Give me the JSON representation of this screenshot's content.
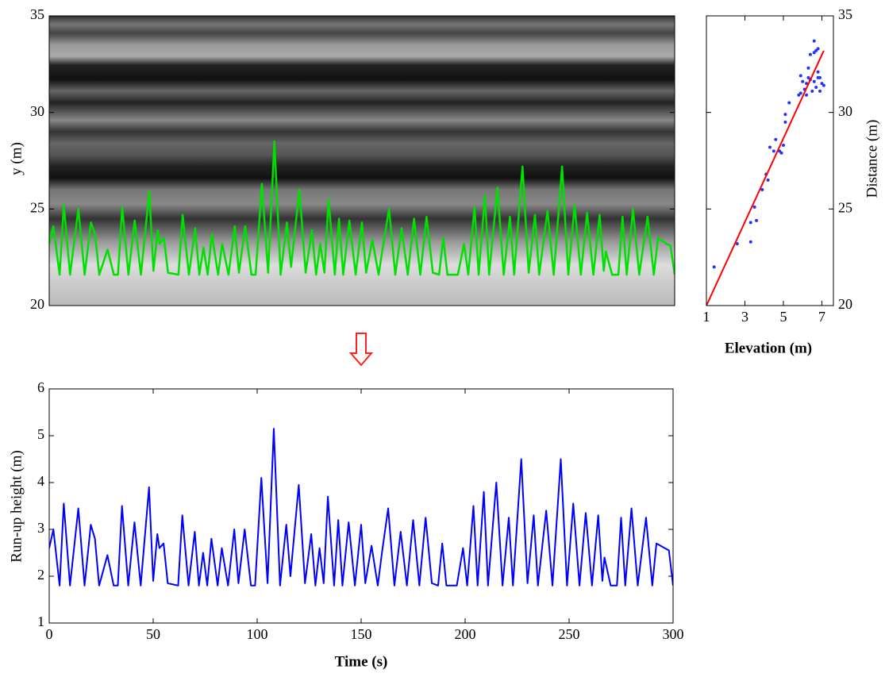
{
  "chart_data": [
    {
      "type": "line",
      "ylabel": "y (m)",
      "xlim": [
        0,
        300
      ],
      "ylim": [
        20,
        35
      ],
      "yticks": [
        20,
        25,
        30,
        35
      ],
      "series": [
        {
          "color": "#00e000",
          "x": [
            0,
            2,
            5,
            7,
            10,
            14,
            17,
            20,
            22,
            24,
            28,
            31,
            33,
            35,
            38,
            41,
            44,
            48,
            50,
            52,
            53,
            55,
            57,
            62,
            64,
            67,
            70,
            72,
            74,
            76,
            78,
            81,
            83,
            86,
            89,
            91,
            94,
            97,
            99,
            102,
            105,
            108,
            111,
            114,
            116,
            120,
            123,
            126,
            128,
            130,
            132,
            134,
            137,
            139,
            141,
            144,
            147,
            150,
            152,
            155,
            158,
            160,
            163,
            166,
            169,
            172,
            175,
            178,
            181,
            184,
            187,
            189,
            191,
            196,
            199,
            201,
            204,
            206,
            209,
            211,
            215,
            218,
            221,
            223,
            227,
            230,
            233,
            235,
            239,
            242,
            246,
            249,
            252,
            255,
            258,
            261,
            264,
            266,
            267,
            270,
            273,
            275,
            277,
            280,
            283,
            287,
            290,
            292,
            296,
            298,
            300
          ],
          "values": [
            23.2,
            24.1,
            21.6,
            25.2,
            21.6,
            25.0,
            21.6,
            24.3,
            23.7,
            21.6,
            22.9,
            21.6,
            21.6,
            25.1,
            21.6,
            24.4,
            21.6,
            25.9,
            21.8,
            23.9,
            23.2,
            23.5,
            21.7,
            21.6,
            24.7,
            21.6,
            24.0,
            21.6,
            23.0,
            21.6,
            23.7,
            21.6,
            23.2,
            21.6,
            24.1,
            21.7,
            24.1,
            21.6,
            21.6,
            26.3,
            21.7,
            28.5,
            21.6,
            24.3,
            22.0,
            26.0,
            21.7,
            23.9,
            21.6,
            23.2,
            21.7,
            25.5,
            21.6,
            24.5,
            21.6,
            24.4,
            21.6,
            24.3,
            21.7,
            23.4,
            21.6,
            23.0,
            25.0,
            21.6,
            24.0,
            21.6,
            24.5,
            21.6,
            24.6,
            21.7,
            21.6,
            23.5,
            21.6,
            21.6,
            23.2,
            21.6,
            25.1,
            21.6,
            25.7,
            21.6,
            26.1,
            21.6,
            24.6,
            21.6,
            27.2,
            21.7,
            24.7,
            21.6,
            24.9,
            21.6,
            27.2,
            21.6,
            25.2,
            21.6,
            24.8,
            21.6,
            24.7,
            21.8,
            22.8,
            21.6,
            21.6,
            24.6,
            21.6,
            25.0,
            21.6,
            24.6,
            21.6,
            23.5,
            23.2,
            23.1,
            21.6
          ]
        }
      ]
    },
    {
      "type": "scatter",
      "xlabel": "Elevation (m)",
      "ylabel": "Distance (m)",
      "xlim": [
        1,
        7.6
      ],
      "ylim": [
        20,
        35
      ],
      "xticks": [
        1,
        3,
        5,
        7
      ],
      "yticks": [
        20,
        25,
        30,
        35
      ],
      "series": [
        {
          "type": "scatter",
          "color": "#2233ff",
          "x": [
            1.4,
            2.6,
            3.3,
            3.3,
            3.5,
            3.6,
            3.9,
            4.1,
            4.2,
            4.3,
            4.5,
            4.6,
            4.8,
            4.9,
            5.0,
            5.1,
            5.1,
            5.3,
            5.8,
            5.9,
            5.9,
            6.0,
            6.1,
            6.2,
            6.3,
            6.3,
            6.4,
            6.5,
            6.6,
            6.6,
            6.6,
            6.7,
            6.7,
            6.8,
            6.8,
            6.8,
            6.9,
            6.9,
            7.0,
            7.1,
            6.4,
            6.2
          ],
          "values": [
            22.0,
            23.2,
            23.3,
            24.3,
            25.1,
            24.4,
            26.0,
            26.8,
            26.5,
            28.2,
            28.0,
            28.6,
            28.0,
            27.9,
            28.3,
            29.9,
            29.5,
            30.5,
            30.9,
            31.0,
            31.9,
            31.6,
            31.2,
            31.5,
            31.8,
            32.3,
            31.7,
            31.1,
            31.6,
            33.1,
            33.7,
            33.2,
            31.3,
            31.8,
            32.1,
            33.3,
            31.1,
            31.8,
            31.5,
            31.4,
            33.0,
            30.9
          ]
        },
        {
          "type": "line",
          "color": "#ff0000",
          "x": [
            1,
            7.1
          ],
          "values": [
            20,
            33.2
          ]
        }
      ]
    },
    {
      "type": "line",
      "xlabel": "Time (s)",
      "ylabel": "Run-up height (m)",
      "xlim": [
        0,
        300
      ],
      "ylim": [
        1,
        6
      ],
      "xticks": [
        0,
        50,
        100,
        150,
        200,
        250,
        300
      ],
      "yticks": [
        1,
        2,
        3,
        4,
        5,
        6
      ],
      "series": [
        {
          "color": "#0000ff",
          "x": [
            0,
            2,
            5,
            7,
            10,
            14,
            17,
            20,
            22,
            24,
            28,
            31,
            33,
            35,
            38,
            41,
            44,
            48,
            50,
            52,
            53,
            55,
            57,
            62,
            64,
            67,
            70,
            72,
            74,
            76,
            78,
            81,
            83,
            86,
            89,
            91,
            94,
            97,
            99,
            102,
            105,
            108,
            111,
            114,
            116,
            120,
            123,
            126,
            128,
            130,
            132,
            134,
            137,
            139,
            141,
            144,
            147,
            150,
            152,
            155,
            158,
            160,
            163,
            166,
            169,
            172,
            175,
            178,
            181,
            184,
            187,
            189,
            191,
            196,
            199,
            201,
            204,
            206,
            209,
            211,
            215,
            218,
            221,
            223,
            227,
            230,
            233,
            235,
            239,
            242,
            246,
            249,
            252,
            255,
            258,
            261,
            264,
            266,
            267,
            270,
            273,
            275,
            277,
            280,
            283,
            287,
            290,
            292,
            296,
            298,
            300
          ],
          "values": [
            2.6,
            3.0,
            1.8,
            3.55,
            1.8,
            3.45,
            1.8,
            3.1,
            2.8,
            1.8,
            2.45,
            1.8,
            1.8,
            3.5,
            1.8,
            3.15,
            1.8,
            3.9,
            1.9,
            2.9,
            2.6,
            2.7,
            1.85,
            1.8,
            3.3,
            1.8,
            2.95,
            1.8,
            2.5,
            1.8,
            2.8,
            1.8,
            2.6,
            1.8,
            3.0,
            1.85,
            3.0,
            1.8,
            1.8,
            4.1,
            1.85,
            5.15,
            1.8,
            3.1,
            2.0,
            3.95,
            1.85,
            2.9,
            1.8,
            2.6,
            1.85,
            3.7,
            1.8,
            3.2,
            1.8,
            3.15,
            1.8,
            3.1,
            1.85,
            2.65,
            1.8,
            2.5,
            3.45,
            1.8,
            2.95,
            1.8,
            3.2,
            1.8,
            3.25,
            1.85,
            1.8,
            2.7,
            1.8,
            1.8,
            2.6,
            1.8,
            3.5,
            1.8,
            3.8,
            1.8,
            4.0,
            1.8,
            3.25,
            1.8,
            4.5,
            1.85,
            3.3,
            1.8,
            3.4,
            1.8,
            4.5,
            1.8,
            3.55,
            1.8,
            3.35,
            1.8,
            3.3,
            1.9,
            2.4,
            1.8,
            1.8,
            3.25,
            1.8,
            3.45,
            1.8,
            3.25,
            1.8,
            2.7,
            2.6,
            2.55,
            1.8
          ]
        }
      ]
    }
  ]
}
